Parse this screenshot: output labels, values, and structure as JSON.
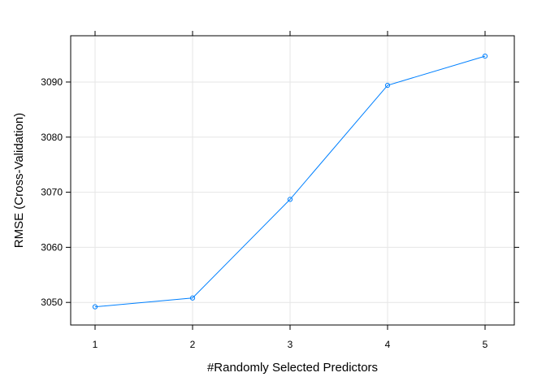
{
  "chart_data": {
    "type": "line",
    "title": "",
    "xlabel": "#Randomly Selected Predictors",
    "ylabel": "RMSE (Cross-Validation)",
    "x": [
      1,
      2,
      3,
      4,
      5
    ],
    "values": [
      3049.2,
      3050.8,
      3068.7,
      3089.4,
      3094.7
    ],
    "x_ticks": [
      "1",
      "2",
      "3",
      "4",
      "5"
    ],
    "y_ticks": [
      3050,
      3060,
      3070,
      3080,
      3090
    ],
    "xlim": [
      0.75,
      5.3
    ],
    "ylim": [
      3045.9,
      3098.4
    ],
    "grid": true,
    "line_color": "#0080ff",
    "grid_color": "#e6e6e6",
    "marker": "open-circle"
  }
}
